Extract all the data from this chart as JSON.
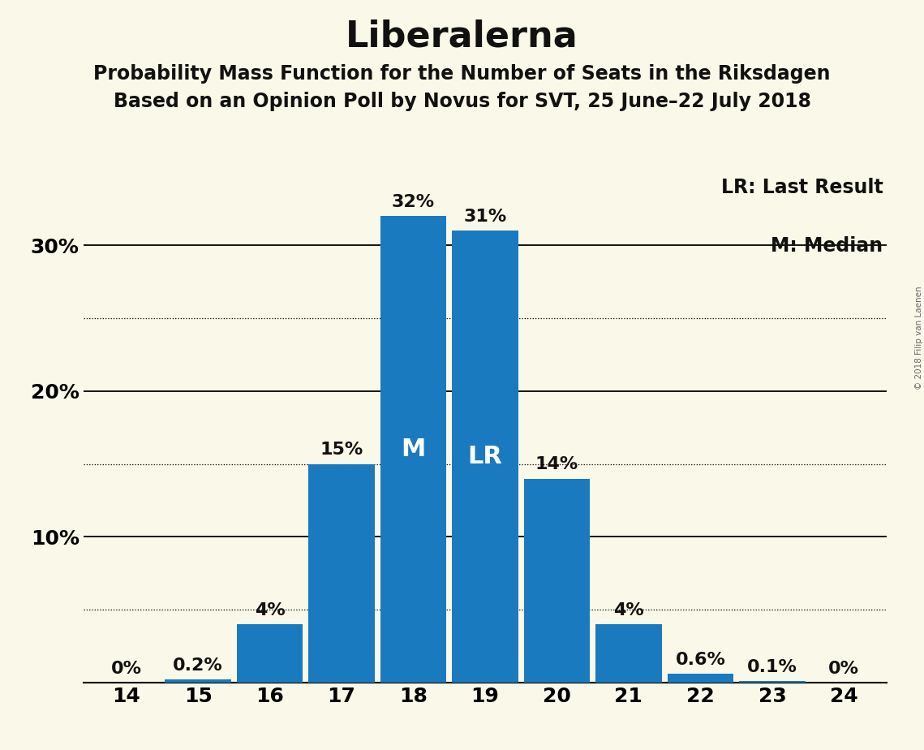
{
  "title": "Liberalerna",
  "subtitle1": "Probability Mass Function for the Number of Seats in the Riksdagen",
  "subtitle2": "Based on an Opinion Poll by Novus for SVT, 25 June–22 July 2018",
  "copyright": "© 2018 Filip van Laenen",
  "categories": [
    14,
    15,
    16,
    17,
    18,
    19,
    20,
    21,
    22,
    23,
    24
  ],
  "values": [
    0.0,
    0.2,
    4.0,
    15.0,
    32.0,
    31.0,
    14.0,
    4.0,
    0.6,
    0.1,
    0.0
  ],
  "labels": [
    "0%",
    "0.2%",
    "4%",
    "15%",
    "32%",
    "31%",
    "14%",
    "4%",
    "0.6%",
    "0.1%",
    "0%"
  ],
  "bar_color": "#1a7abf",
  "background_color": "#faf8e8",
  "text_color": "#111111",
  "median_bar": 18,
  "last_result_bar": 19,
  "median_label": "M",
  "last_result_label": "LR",
  "legend_lr": "LR: Last Result",
  "legend_m": "M: Median",
  "ylim": [
    0,
    35
  ],
  "solid_yticks": [
    10,
    20,
    30
  ],
  "dotted_yticks": [
    5,
    15,
    25
  ],
  "ytick_positions": [
    0,
    10,
    20,
    30
  ],
  "ytick_labels": [
    "",
    "10%",
    "20%",
    "30%"
  ],
  "title_fontsize": 32,
  "subtitle_fontsize": 17,
  "label_fontsize": 16,
  "axis_fontsize": 18,
  "inside_label_fontsize": 22
}
